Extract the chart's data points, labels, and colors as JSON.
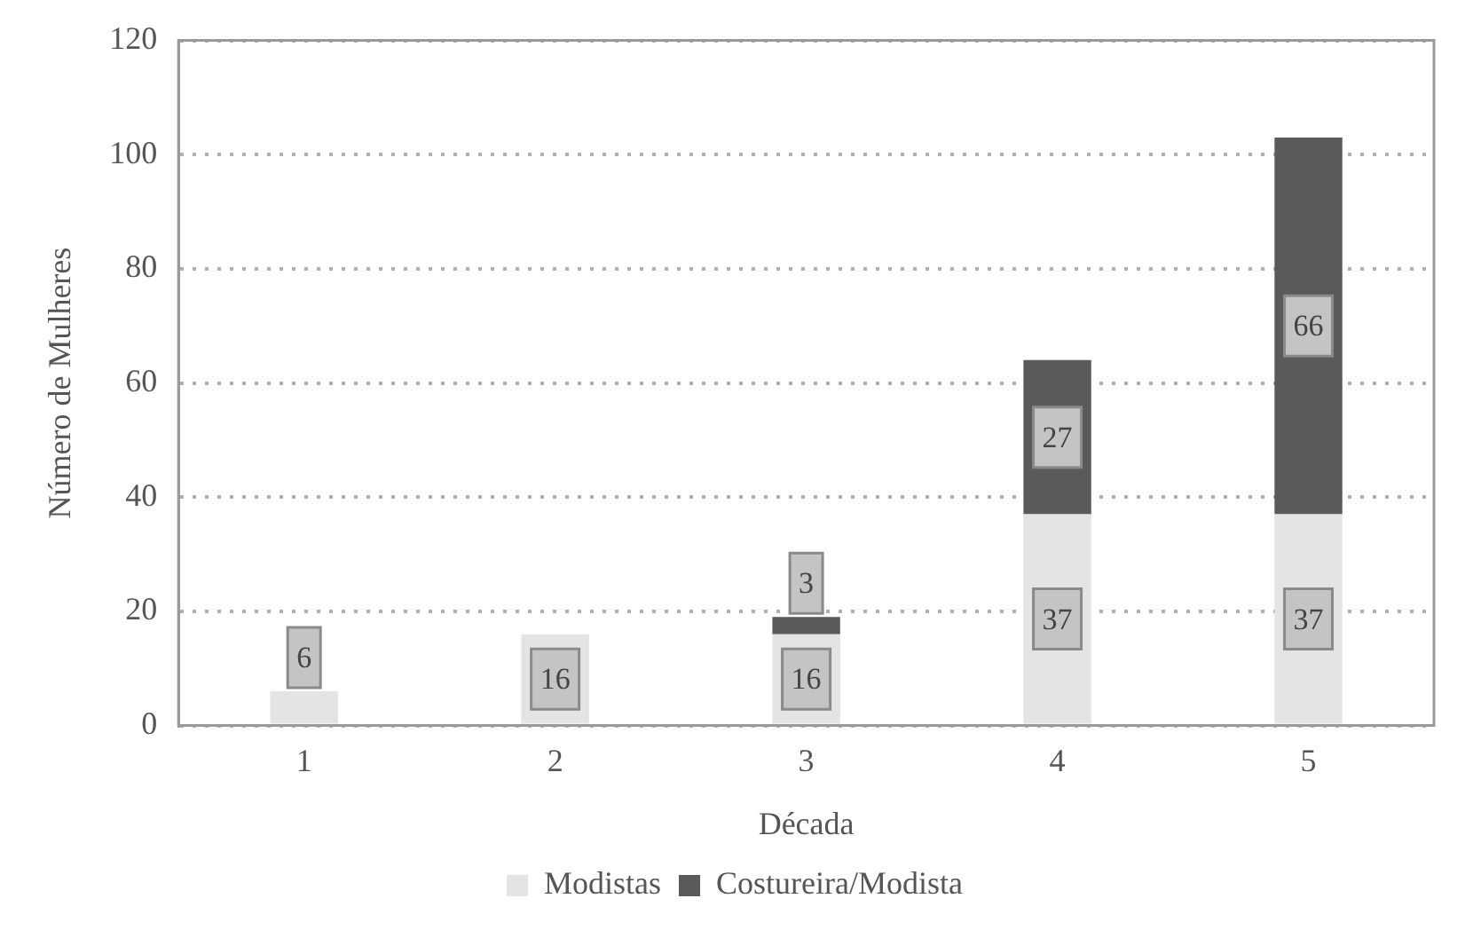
{
  "chart_data": {
    "type": "bar",
    "stacked": true,
    "xlabel": "Década",
    "ylabel": "Número de Mulheres",
    "categories": [
      "1",
      "2",
      "3",
      "4",
      "5"
    ],
    "series": [
      {
        "name": "Modistas",
        "color": "#e4e4e4",
        "values": [
          6,
          16,
          16,
          37,
          37
        ]
      },
      {
        "name": "Costureira/Modista",
        "color": "#5a5a5a",
        "values": [
          null,
          null,
          3,
          27,
          66
        ]
      }
    ],
    "ylim": [
      0,
      120
    ],
    "yticks": [
      0,
      20,
      40,
      60,
      80,
      100,
      120
    ],
    "grid": "y",
    "legend": "bottom",
    "data_labels": true
  }
}
